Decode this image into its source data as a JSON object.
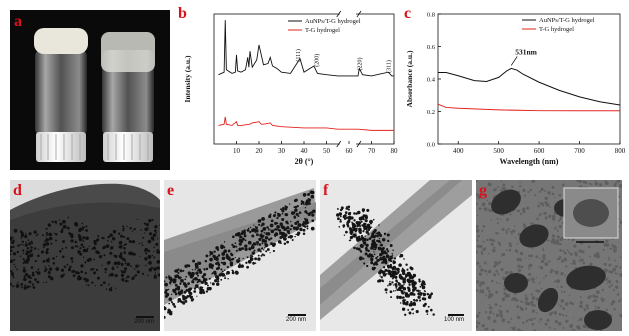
{
  "panels": {
    "a": {
      "label": "a"
    },
    "b": {
      "label": "b"
    },
    "c": {
      "label": "c"
    },
    "d": {
      "label": "d",
      "scalebar": "200 nm"
    },
    "e": {
      "label": "e",
      "scalebar": "200 nm"
    },
    "f": {
      "label": "f",
      "scalebar": "100 nm"
    },
    "g": {
      "label": "g"
    }
  },
  "chart_data": [
    {
      "type": "line",
      "panel": "b",
      "xlabel": "2θ (°)",
      "ylabel": "Intensity (a.u.)",
      "xticks": [
        "10",
        "20",
        "30",
        "40",
        "50",
        "60",
        "70",
        "80"
      ],
      "xlim": [
        0,
        80
      ],
      "axis_break": [
        55,
        64
      ],
      "legend": "top-right",
      "annotations": [
        "(111)",
        "(200)",
        "(220)",
        "(311)"
      ],
      "series": [
        {
          "name": "AuNPs/T-G hydrogel",
          "color": "#111111",
          "x": [
            2,
            4.5,
            5,
            5.5,
            8,
            9.5,
            10,
            10.5,
            12,
            14,
            15,
            15.5,
            16,
            17,
            19,
            20,
            21,
            22,
            24,
            25,
            26,
            28,
            30,
            34,
            38.2,
            40,
            44.4,
            46,
            50,
            55,
            64,
            64.6,
            66,
            70,
            77.5,
            79,
            80
          ],
          "y": [
            56,
            58,
            100,
            60,
            57,
            58,
            72,
            59,
            58,
            60,
            70,
            62,
            75,
            62,
            68,
            80,
            72,
            64,
            65,
            70,
            63,
            61,
            58,
            57,
            69,
            58,
            63,
            57,
            56,
            55,
            55,
            61,
            56,
            55,
            58,
            55,
            55
          ]
        },
        {
          "name": "T-G hydrogel",
          "color": "#e3231e",
          "x": [
            2,
            4.5,
            5,
            5.5,
            8,
            10,
            10.5,
            12,
            16,
            17,
            20,
            21,
            22,
            25,
            26,
            30,
            40,
            50,
            55,
            64,
            70,
            80
          ],
          "y": [
            15,
            16,
            22,
            16,
            15,
            18,
            15,
            15,
            16,
            17,
            18,
            16,
            16,
            17,
            15,
            14,
            13,
            13,
            12,
            12,
            11,
            11
          ]
        }
      ]
    },
    {
      "type": "line",
      "panel": "c",
      "xlabel": "Wavelength (nm)",
      "ylabel": "Absorbance (a.u.)",
      "xlim": [
        350,
        800
      ],
      "ylim": [
        0.0,
        0.8
      ],
      "xticks": [
        "400",
        "500",
        "600",
        "700",
        "800"
      ],
      "yticks": [
        "0.0",
        "0.2",
        "0.4",
        "0.6",
        "0.8"
      ],
      "legend": "top-right",
      "annotations": [
        "531nm"
      ],
      "series": [
        {
          "name": "AuNPs/T-G hydrogel",
          "color": "#111111",
          "x": [
            350,
            370,
            400,
            440,
            470,
            500,
            520,
            531,
            545,
            560,
            600,
            650,
            700,
            750,
            800
          ],
          "y": [
            0.44,
            0.44,
            0.42,
            0.39,
            0.385,
            0.41,
            0.45,
            0.465,
            0.455,
            0.43,
            0.38,
            0.33,
            0.29,
            0.26,
            0.24
          ]
        },
        {
          "name": "T-G hydrogel",
          "color": "#e3231e",
          "x": [
            350,
            370,
            400,
            500,
            600,
            700,
            800
          ],
          "y": [
            0.245,
            0.225,
            0.22,
            0.21,
            0.205,
            0.205,
            0.205
          ]
        }
      ]
    }
  ]
}
